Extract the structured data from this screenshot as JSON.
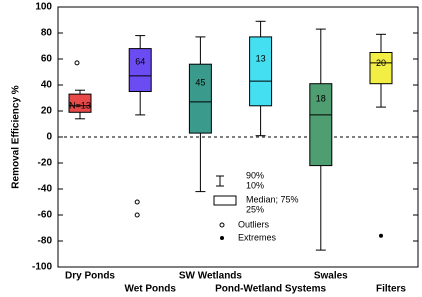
{
  "chart_data": {
    "type": "box",
    "y_label": "Removal Efficiency %",
    "ylim": [
      -100,
      100
    ],
    "yticks": [
      -100,
      -80,
      -60,
      -40,
      -20,
      0,
      20,
      40,
      60,
      80,
      100
    ],
    "categories": [
      "Dry Ponds",
      "Wet Ponds",
      "SW Wetlands",
      "Pond-Wetland Systems",
      "Swales",
      "Filters"
    ],
    "series": [
      {
        "color": "#e84a4a",
        "whisker_low": 14,
        "q1": 19,
        "median": 24,
        "q3": 33,
        "whisker_high": 36,
        "outliers": [
          57
        ],
        "extremes": [],
        "n_label": "N=13"
      },
      {
        "color": "#6b4cf2",
        "whisker_low": 17,
        "q1": 35,
        "median": 47,
        "q3": 68,
        "whisker_high": 78,
        "outliers": [
          -50,
          -60
        ],
        "extremes": [],
        "n_label": "64"
      },
      {
        "color": "#3a9a8c",
        "whisker_low": -42,
        "q1": 3,
        "median": 27,
        "q3": 56,
        "whisker_high": 77,
        "outliers": [],
        "extremes": [],
        "n_label": "45"
      },
      {
        "color": "#44e0f2",
        "whisker_low": 1,
        "q1": 24,
        "median": 43,
        "q3": 77,
        "whisker_high": 89,
        "outliers": [],
        "extremes": [],
        "n_label": "13"
      },
      {
        "color": "#4f9e72",
        "whisker_low": -87,
        "q1": -22,
        "median": 17,
        "q3": 41,
        "whisker_high": 83,
        "outliers": [],
        "extremes": [],
        "n_label": "18"
      },
      {
        "color": "#f2ee44",
        "whisker_low": 23,
        "q1": 41,
        "median": 57,
        "q3": 65,
        "whisker_high": 79,
        "outliers": [],
        "extremes": [
          -76
        ],
        "n_label": "20"
      }
    ],
    "legend": {
      "whisker_high": "90%",
      "whisker_low": "10%",
      "box_high": "Median; 75%",
      "box_low": "25%",
      "outliers": "Outliers",
      "extremes": "Extremes"
    }
  }
}
